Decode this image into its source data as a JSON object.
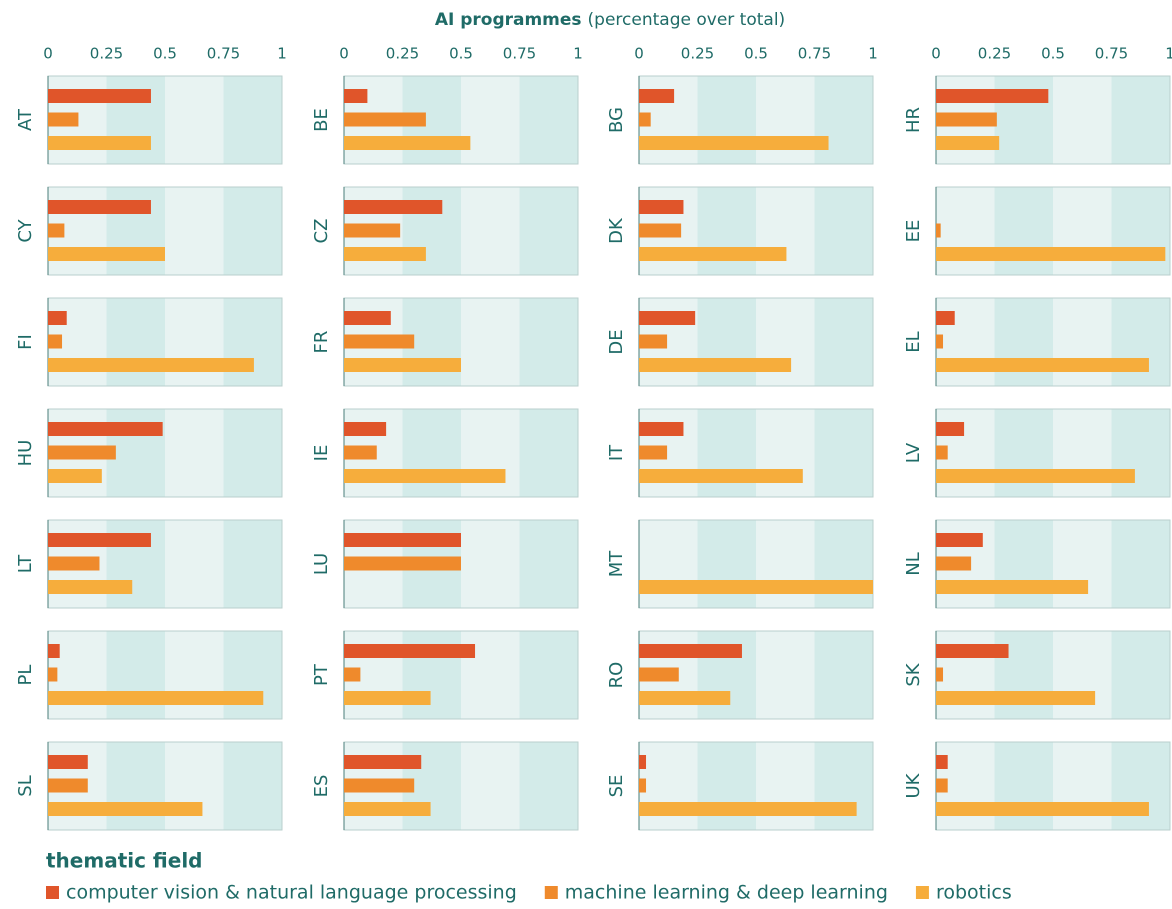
{
  "chart_data": {
    "type": "bar",
    "orientation": "horizontal",
    "title": "AI programmes",
    "subtitle": "(percentage over total)",
    "legend_title": "thematic field",
    "categories": [
      "AT",
      "CY",
      "FI",
      "HU",
      "LT",
      "PL",
      "SL",
      "BE",
      "CZ",
      "FR",
      "IE",
      "LU",
      "PT",
      "ES",
      "BG",
      "DK",
      "DE",
      "IT",
      "MT",
      "RO",
      "SE",
      "HR",
      "EE",
      "EL",
      "LV",
      "NL",
      "SK",
      "UK"
    ],
    "series": [
      {
        "name": "computer vision & natural language processing",
        "color": "#e0552a",
        "values": [
          0.44,
          0.44,
          0.08,
          0.49,
          0.44,
          0.05,
          0.17,
          0.1,
          0.42,
          0.2,
          0.18,
          0.5,
          0.56,
          0.33,
          0.15,
          0.19,
          0.24,
          0.19,
          0,
          0.44,
          0.03,
          0.48,
          0,
          0.08,
          0.12,
          0.2,
          0.31,
          0.05
        ]
      },
      {
        "name": "machine learning & deep learning",
        "color": "#ef8a2c",
        "values": [
          0.13,
          0.07,
          0.06,
          0.29,
          0.22,
          0.04,
          0.17,
          0.35,
          0.24,
          0.3,
          0.14,
          0.5,
          0.07,
          0.3,
          0.05,
          0.18,
          0.12,
          0.12,
          0,
          0.17,
          0.03,
          0.26,
          0.02,
          0.03,
          0.05,
          0.15,
          0.03,
          0.05
        ]
      },
      {
        "name": "robotics",
        "color": "#f6ad3c",
        "values": [
          0.44,
          0.5,
          0.88,
          0.23,
          0.36,
          0.92,
          0.66,
          0.54,
          0.35,
          0.5,
          0.69,
          0,
          0.37,
          0.37,
          0.81,
          0.63,
          0.65,
          0.7,
          1.0,
          0.39,
          0.93,
          0.27,
          0.98,
          0.91,
          0.85,
          0.65,
          0.68,
          0.91
        ]
      }
    ],
    "xlim": [
      0,
      1
    ],
    "xticks": [
      0,
      0.25,
      0.5,
      0.75,
      1
    ],
    "band_colors": [
      "#e8f3f2",
      "#d3ebe9"
    ]
  }
}
